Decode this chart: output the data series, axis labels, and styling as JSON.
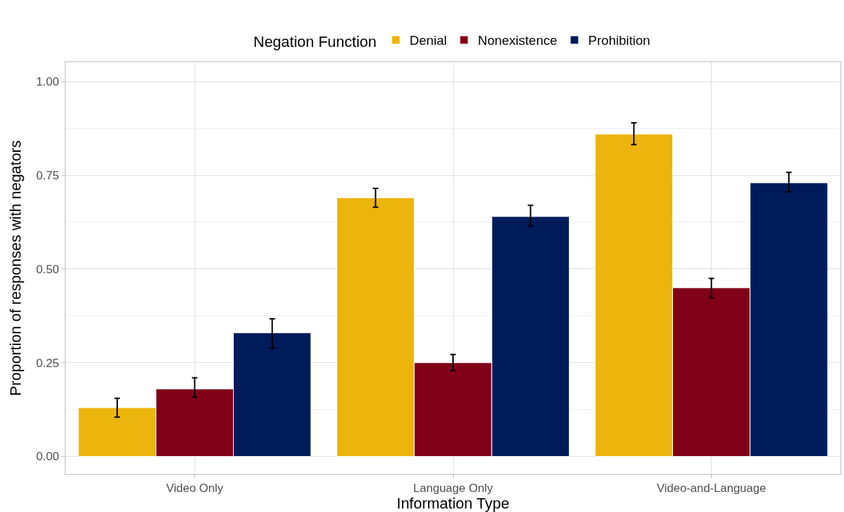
{
  "chart_data": {
    "type": "bar",
    "xlabel": "Information Type",
    "ylabel": "Proportion of responses with negators",
    "legend_title": "Negation Function",
    "categories": [
      "Video Only",
      "Language Only",
      "Video-and-Language"
    ],
    "series": [
      {
        "name": "Denial",
        "color": "#ecb50d",
        "values": [
          0.13,
          0.69,
          0.86
        ],
        "errors": [
          [
            0.105,
            0.155
          ],
          [
            0.665,
            0.715
          ],
          [
            0.832,
            0.89
          ]
        ]
      },
      {
        "name": "Nonexistence",
        "color": "#800018",
        "values": [
          0.18,
          0.25,
          0.45
        ],
        "errors": [
          [
            0.158,
            0.21
          ],
          [
            0.229,
            0.272
          ],
          [
            0.423,
            0.475
          ]
        ]
      },
      {
        "name": "Prohibition",
        "color": "#001b5a",
        "values": [
          0.33,
          0.64,
          0.73
        ],
        "errors": [
          [
            0.289,
            0.367
          ],
          [
            0.615,
            0.67
          ],
          [
            0.706,
            0.758
          ]
        ]
      }
    ],
    "ylim": [
      -0.047,
      1.052
    ],
    "yticks": [
      {
        "value": 0,
        "label": "0.00"
      },
      {
        "value": 0.25,
        "label": "0.25"
      },
      {
        "value": 0.5,
        "label": "0.50"
      },
      {
        "value": 0.75,
        "label": "0.75"
      },
      {
        "value": 1,
        "label": "1.00"
      }
    ],
    "grid": true,
    "legend": "top"
  }
}
